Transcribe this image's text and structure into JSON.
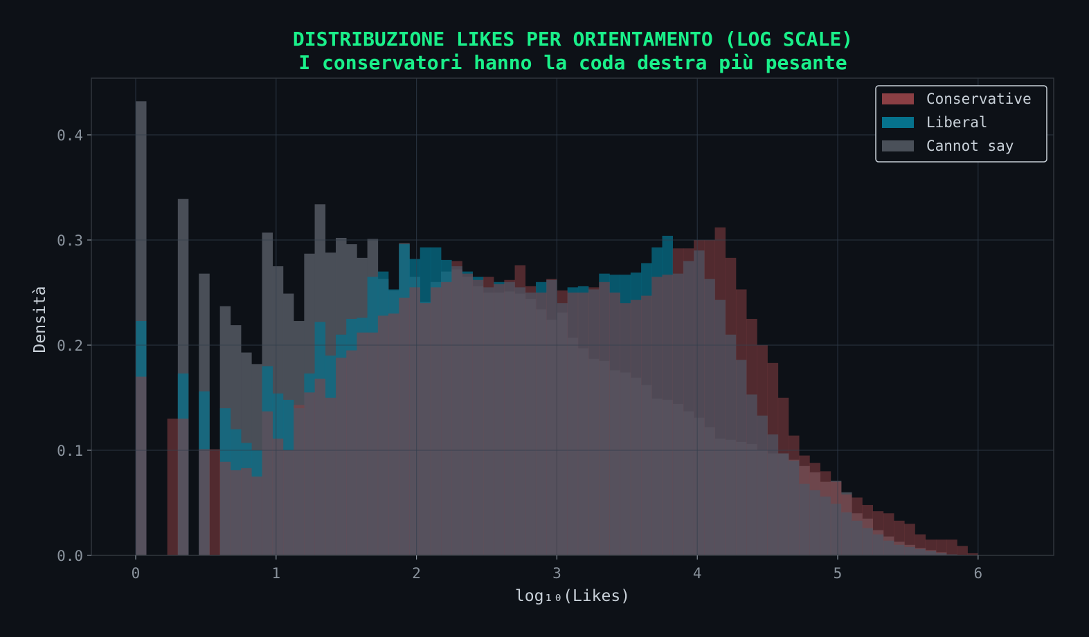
{
  "chart_data": {
    "type": "histogram",
    "title": "DISTRIBUZIONE LIKES PER ORIENTAMENTO (LOG SCALE)",
    "subtitle": "I conservatori hanno la coda destra più pesante",
    "xlabel": "log₁₀(Likes)",
    "ylabel": "Densità",
    "xlim": [
      -0.32,
      6.55
    ],
    "ylim": [
      0,
      0.455
    ],
    "xticks": [
      0,
      1,
      2,
      3,
      4,
      5,
      6
    ],
    "yticks": [
      0.0,
      0.1,
      0.2,
      0.3,
      0.4
    ],
    "ytick_labels": [
      "0.0",
      "0.1",
      "0.2",
      "0.3",
      "0.4"
    ],
    "grid": true,
    "legend_position": "upper right",
    "colors": {
      "background": "#0d1117",
      "conservative": "#8b3f44",
      "liberal": "#06728c",
      "cannot_say": "#4a5059",
      "title": "#1af08a",
      "axis_text": "#8b949e",
      "label_text": "#c9d1d9"
    },
    "series": [
      {
        "name": "Cannot say",
        "color": "#4a5059",
        "opacity": 0.98,
        "bins": [
          [
            0.0,
            0.075,
            0.432
          ],
          [
            0.3,
            0.375,
            0.339
          ],
          [
            0.45,
            0.525,
            0.268
          ],
          [
            0.6,
            0.675,
            0.237
          ],
          [
            0.675,
            0.75,
            0.219
          ],
          [
            0.75,
            0.825,
            0.193
          ],
          [
            0.825,
            0.9,
            0.182
          ],
          [
            0.9,
            0.975,
            0.307
          ],
          [
            0.975,
            1.05,
            0.275
          ],
          [
            1.05,
            1.125,
            0.249
          ],
          [
            1.125,
            1.2,
            0.223
          ],
          [
            1.2,
            1.275,
            0.287
          ],
          [
            1.275,
            1.35,
            0.334
          ],
          [
            1.35,
            1.425,
            0.288
          ],
          [
            1.425,
            1.5,
            0.302
          ],
          [
            1.5,
            1.575,
            0.296
          ],
          [
            1.575,
            1.65,
            0.283
          ],
          [
            1.65,
            1.725,
            0.301
          ],
          [
            1.725,
            1.8,
            0.263
          ],
          [
            1.8,
            1.875,
            0.252
          ],
          [
            1.875,
            1.95,
            0.297
          ],
          [
            1.95,
            2.025,
            0.265
          ],
          [
            2.025,
            2.1,
            0.241
          ],
          [
            2.1,
            2.175,
            0.26
          ],
          [
            2.175,
            2.25,
            0.27
          ],
          [
            2.25,
            2.325,
            0.272
          ],
          [
            2.325,
            2.4,
            0.265
          ],
          [
            2.4,
            2.475,
            0.256
          ],
          [
            2.475,
            2.55,
            0.25
          ],
          [
            2.55,
            2.625,
            0.25
          ],
          [
            2.625,
            2.7,
            0.251
          ],
          [
            2.7,
            2.775,
            0.249
          ],
          [
            2.775,
            2.85,
            0.244
          ],
          [
            2.85,
            2.925,
            0.234
          ],
          [
            2.925,
            3.0,
            0.224
          ],
          [
            3.0,
            3.075,
            0.231
          ],
          [
            3.075,
            3.15,
            0.207
          ],
          [
            3.15,
            3.225,
            0.197
          ],
          [
            3.225,
            3.3,
            0.187
          ],
          [
            3.3,
            3.375,
            0.185
          ],
          [
            3.375,
            3.45,
            0.176
          ],
          [
            3.45,
            3.525,
            0.174
          ],
          [
            3.525,
            3.6,
            0.169
          ],
          [
            3.6,
            3.675,
            0.162
          ],
          [
            3.675,
            3.75,
            0.149
          ],
          [
            3.75,
            3.825,
            0.148
          ],
          [
            3.825,
            3.9,
            0.144
          ],
          [
            3.9,
            3.975,
            0.137
          ],
          [
            3.975,
            4.05,
            0.131
          ],
          [
            4.05,
            4.125,
            0.122
          ],
          [
            4.125,
            4.2,
            0.111
          ],
          [
            4.2,
            4.275,
            0.11
          ],
          [
            4.275,
            4.35,
            0.108
          ],
          [
            4.35,
            4.425,
            0.106
          ],
          [
            4.425,
            4.5,
            0.1
          ],
          [
            4.5,
            4.575,
            0.097
          ],
          [
            4.575,
            4.65,
            0.097
          ],
          [
            4.65,
            4.725,
            0.091
          ],
          [
            4.725,
            4.8,
            0.085
          ],
          [
            4.8,
            4.875,
            0.079
          ],
          [
            4.875,
            4.95,
            0.07
          ],
          [
            4.95,
            5.025,
            0.071
          ],
          [
            5.025,
            5.1,
            0.06
          ],
          [
            5.1,
            5.175,
            0.04
          ],
          [
            5.175,
            5.25,
            0.035
          ],
          [
            5.25,
            5.325,
            0.024
          ],
          [
            5.325,
            5.4,
            0.018
          ],
          [
            5.4,
            5.475,
            0.013
          ],
          [
            5.475,
            5.55,
            0.01
          ],
          [
            5.55,
            5.625,
            0.007
          ],
          [
            5.625,
            5.7,
            0.005
          ],
          [
            5.7,
            5.775,
            0.003
          ]
        ]
      },
      {
        "name": "Liberal",
        "color": "#06728c",
        "opacity": 0.72,
        "bins": [
          [
            0.0,
            0.075,
            0.223
          ],
          [
            0.3,
            0.375,
            0.173
          ],
          [
            0.45,
            0.525,
            0.156
          ],
          [
            0.6,
            0.675,
            0.14
          ],
          [
            0.675,
            0.75,
            0.12
          ],
          [
            0.75,
            0.825,
            0.107
          ],
          [
            0.825,
            0.9,
            0.1
          ],
          [
            0.9,
            0.975,
            0.18
          ],
          [
            0.975,
            1.05,
            0.154
          ],
          [
            1.05,
            1.125,
            0.148
          ],
          [
            1.125,
            1.2,
            0.14
          ],
          [
            1.2,
            1.275,
            0.173
          ],
          [
            1.275,
            1.35,
            0.222
          ],
          [
            1.35,
            1.425,
            0.19
          ],
          [
            1.425,
            1.5,
            0.21
          ],
          [
            1.5,
            1.575,
            0.225
          ],
          [
            1.575,
            1.65,
            0.226
          ],
          [
            1.65,
            1.725,
            0.265
          ],
          [
            1.725,
            1.8,
            0.27
          ],
          [
            1.8,
            1.875,
            0.253
          ],
          [
            1.875,
            1.95,
            0.296
          ],
          [
            1.95,
            2.025,
            0.282
          ],
          [
            2.025,
            2.1,
            0.293
          ],
          [
            2.1,
            2.175,
            0.293
          ],
          [
            2.175,
            2.25,
            0.281
          ],
          [
            2.25,
            2.325,
            0.275
          ],
          [
            2.325,
            2.4,
            0.27
          ],
          [
            2.4,
            2.475,
            0.265
          ],
          [
            2.475,
            2.55,
            0.255
          ],
          [
            2.55,
            2.625,
            0.26
          ],
          [
            2.625,
            2.7,
            0.26
          ],
          [
            2.7,
            2.775,
            0.255
          ],
          [
            2.775,
            2.85,
            0.25
          ],
          [
            2.85,
            2.925,
            0.26
          ],
          [
            2.925,
            3.0,
            0.262
          ],
          [
            3.0,
            3.075,
            0.24
          ],
          [
            3.075,
            3.15,
            0.255
          ],
          [
            3.15,
            3.225,
            0.256
          ],
          [
            3.225,
            3.3,
            0.253
          ],
          [
            3.3,
            3.375,
            0.268
          ],
          [
            3.375,
            3.45,
            0.267
          ],
          [
            3.45,
            3.525,
            0.267
          ],
          [
            3.525,
            3.6,
            0.269
          ],
          [
            3.6,
            3.675,
            0.278
          ],
          [
            3.675,
            3.75,
            0.293
          ],
          [
            3.75,
            3.825,
            0.304
          ],
          [
            3.825,
            3.9,
            0.268
          ],
          [
            3.9,
            3.975,
            0.28
          ],
          [
            3.975,
            4.05,
            0.29
          ],
          [
            4.05,
            4.125,
            0.263
          ],
          [
            4.125,
            4.2,
            0.243
          ],
          [
            4.2,
            4.275,
            0.21
          ],
          [
            4.275,
            4.35,
            0.186
          ],
          [
            4.35,
            4.425,
            0.153
          ],
          [
            4.425,
            4.5,
            0.133
          ],
          [
            4.5,
            4.575,
            0.115
          ],
          [
            4.575,
            4.65,
            0.097
          ],
          [
            4.65,
            4.725,
            0.09
          ],
          [
            4.725,
            4.8,
            0.068
          ],
          [
            4.8,
            4.875,
            0.062
          ],
          [
            4.875,
            4.95,
            0.056
          ],
          [
            4.95,
            5.025,
            0.049
          ],
          [
            5.025,
            5.1,
            0.041
          ],
          [
            5.1,
            5.175,
            0.033
          ],
          [
            5.175,
            5.25,
            0.026
          ],
          [
            5.25,
            5.325,
            0.02
          ],
          [
            5.325,
            5.4,
            0.014
          ],
          [
            5.4,
            5.475,
            0.01
          ],
          [
            5.475,
            5.55,
            0.008
          ],
          [
            5.55,
            5.625,
            0.006
          ],
          [
            5.625,
            5.7,
            0.004
          ],
          [
            5.7,
            5.775,
            0.002
          ],
          [
            5.775,
            5.85,
            0.001
          ]
        ]
      },
      {
        "name": "Conservative",
        "color": "#8b3f44",
        "opacity": 0.55,
        "bins": [
          [
            0.0,
            0.075,
            0.17
          ],
          [
            0.225,
            0.3,
            0.13
          ],
          [
            0.3,
            0.375,
            0.13
          ],
          [
            0.45,
            0.525,
            0.101
          ],
          [
            0.525,
            0.6,
            0.101
          ],
          [
            0.6,
            0.675,
            0.089
          ],
          [
            0.675,
            0.75,
            0.081
          ],
          [
            0.75,
            0.825,
            0.083
          ],
          [
            0.825,
            0.9,
            0.075
          ],
          [
            0.9,
            0.975,
            0.137
          ],
          [
            0.975,
            1.05,
            0.111
          ],
          [
            1.05,
            1.125,
            0.1
          ],
          [
            1.125,
            1.2,
            0.143
          ],
          [
            1.2,
            1.275,
            0.155
          ],
          [
            1.275,
            1.35,
            0.168
          ],
          [
            1.35,
            1.425,
            0.15
          ],
          [
            1.425,
            1.5,
            0.188
          ],
          [
            1.5,
            1.575,
            0.195
          ],
          [
            1.575,
            1.65,
            0.212
          ],
          [
            1.65,
            1.725,
            0.212
          ],
          [
            1.725,
            1.8,
            0.228
          ],
          [
            1.8,
            1.875,
            0.23
          ],
          [
            1.875,
            1.95,
            0.245
          ],
          [
            1.95,
            2.025,
            0.255
          ],
          [
            2.025,
            2.1,
            0.24
          ],
          [
            2.1,
            2.175,
            0.255
          ],
          [
            2.175,
            2.25,
            0.26
          ],
          [
            2.25,
            2.325,
            0.28
          ],
          [
            2.325,
            2.4,
            0.268
          ],
          [
            2.4,
            2.475,
            0.262
          ],
          [
            2.475,
            2.55,
            0.265
          ],
          [
            2.55,
            2.625,
            0.258
          ],
          [
            2.625,
            2.7,
            0.262
          ],
          [
            2.7,
            2.775,
            0.276
          ],
          [
            2.775,
            2.85,
            0.256
          ],
          [
            2.85,
            2.925,
            0.25
          ],
          [
            2.925,
            3.0,
            0.263
          ],
          [
            3.0,
            3.075,
            0.252
          ],
          [
            3.075,
            3.15,
            0.25
          ],
          [
            3.15,
            3.225,
            0.25
          ],
          [
            3.225,
            3.3,
            0.255
          ],
          [
            3.3,
            3.375,
            0.26
          ],
          [
            3.375,
            3.45,
            0.25
          ],
          [
            3.45,
            3.525,
            0.24
          ],
          [
            3.525,
            3.6,
            0.243
          ],
          [
            3.6,
            3.675,
            0.247
          ],
          [
            3.675,
            3.75,
            0.265
          ],
          [
            3.75,
            3.825,
            0.267
          ],
          [
            3.825,
            3.9,
            0.292
          ],
          [
            3.9,
            3.975,
            0.292
          ],
          [
            3.975,
            4.05,
            0.3
          ],
          [
            4.05,
            4.125,
            0.3
          ],
          [
            4.125,
            4.2,
            0.312
          ],
          [
            4.2,
            4.275,
            0.283
          ],
          [
            4.275,
            4.35,
            0.253
          ],
          [
            4.35,
            4.425,
            0.225
          ],
          [
            4.425,
            4.5,
            0.2
          ],
          [
            4.5,
            4.575,
            0.183
          ],
          [
            4.575,
            4.65,
            0.15
          ],
          [
            4.65,
            4.725,
            0.114
          ],
          [
            4.725,
            4.8,
            0.095
          ],
          [
            4.8,
            4.875,
            0.088
          ],
          [
            4.875,
            4.95,
            0.08
          ],
          [
            4.95,
            5.025,
            0.07
          ],
          [
            5.025,
            5.1,
            0.058
          ],
          [
            5.1,
            5.175,
            0.055
          ],
          [
            5.175,
            5.25,
            0.048
          ],
          [
            5.25,
            5.325,
            0.042
          ],
          [
            5.325,
            5.4,
            0.04
          ],
          [
            5.4,
            5.475,
            0.033
          ],
          [
            5.475,
            5.55,
            0.03
          ],
          [
            5.55,
            5.625,
            0.02
          ],
          [
            5.625,
            5.7,
            0.015
          ],
          [
            5.7,
            5.775,
            0.015
          ],
          [
            5.775,
            5.85,
            0.015
          ],
          [
            5.85,
            5.925,
            0.009
          ],
          [
            5.925,
            6.0,
            0.002
          ]
        ]
      }
    ],
    "legend": [
      {
        "label": "Conservative",
        "color": "#8b3f44"
      },
      {
        "label": "Liberal",
        "color": "#06728c"
      },
      {
        "label": "Cannot say",
        "color": "#4a5059"
      }
    ]
  }
}
